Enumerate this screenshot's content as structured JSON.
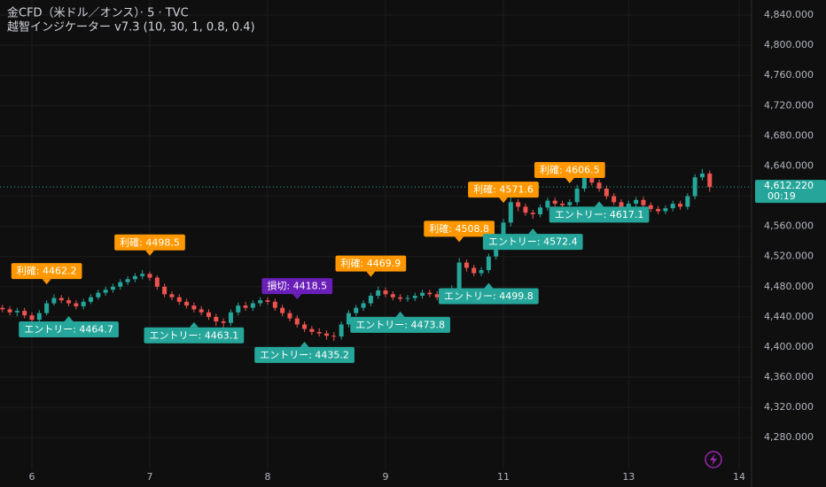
{
  "chart_data": {
    "type": "candlestick",
    "title": "金CFD（米ドル／オンス）· 5 · TVC",
    "subtitle": "越智インジケーター v7.3 (10, 30, 1, 0.8, 0.4)",
    "up_color": "#26a69a",
    "down_color": "#ef5350",
    "grid": true,
    "categories": [
      null,
      null,
      null,
      null,
      "6",
      null,
      null,
      null,
      null,
      null,
      null,
      null,
      null,
      null,
      null,
      null,
      null,
      null,
      null,
      null,
      "7",
      null,
      null,
      null,
      null,
      null,
      null,
      null,
      null,
      null,
      null,
      null,
      null,
      null,
      null,
      null,
      "8",
      null,
      null,
      null,
      null,
      null,
      null,
      null,
      null,
      null,
      null,
      null,
      null,
      null,
      null,
      null,
      "9",
      null,
      null,
      null,
      null,
      null,
      null,
      null,
      null,
      null,
      null,
      null,
      null,
      null,
      null,
      null,
      "11",
      null,
      null,
      null,
      null,
      null,
      null,
      null,
      null,
      null,
      null,
      null,
      null,
      null,
      null,
      null,
      null,
      "13",
      null,
      null,
      null,
      null,
      null,
      null,
      null,
      null,
      null,
      null,
      null,
      null,
      null,
      null,
      "14"
    ],
    "open": [
      4452,
      4450,
      4446,
      4448,
      4442,
      4436,
      4445,
      4458,
      4465,
      4462,
      4458,
      4454,
      4460,
      4466,
      4472,
      4476,
      4480,
      4486,
      4490,
      4494,
      4497,
      4492,
      4480,
      4470,
      4466,
      4460,
      4455,
      4450,
      4446,
      4440,
      4434,
      4432,
      4446,
      4455,
      4452,
      4458,
      4462,
      4460,
      4452,
      4445,
      4438,
      4430,
      4424,
      4420,
      4418,
      4415,
      4414,
      4430,
      4445,
      4452,
      4458,
      4468,
      4475,
      4470,
      4466,
      4464,
      4465,
      4468,
      4472,
      4470,
      4466,
      4462,
      4478,
      4512,
      4505,
      4498,
      4502,
      4520,
      4534,
      4565,
      4592,
      4586,
      4578,
      4576,
      4585,
      4594,
      4590,
      4588,
      4592,
      4610,
      4625,
      4618,
      4610,
      4600,
      4592,
      4586,
      4590,
      4595,
      4588,
      4583,
      4580,
      4584,
      4590,
      4586,
      4600,
      4625,
      4630,
      null,
      null,
      null,
      null
    ],
    "high": [
      4456,
      4454,
      4452,
      4452,
      4446,
      4449,
      4462,
      4470,
      4469,
      4466,
      4462,
      4464,
      4470,
      4476,
      4480,
      4484,
      4490,
      4494,
      4498,
      4502,
      4500,
      4495,
      4484,
      4474,
      4470,
      4464,
      4459,
      4454,
      4450,
      4444,
      4438,
      4450,
      4459,
      4460,
      4462,
      4466,
      4466,
      4464,
      4456,
      4449,
      4442,
      4434,
      4428,
      4425,
      4422,
      4420,
      4434,
      4449,
      4456,
      4462,
      4472,
      4480,
      4479,
      4474,
      4470,
      4469,
      4472,
      4476,
      4476,
      4474,
      4470,
      4482,
      4518,
      4516,
      4509,
      4506,
      4524,
      4538,
      4570,
      4600,
      4596,
      4590,
      4582,
      4589,
      4598,
      4598,
      4594,
      4596,
      4615,
      4632,
      4628,
      4622,
      4614,
      4604,
      4596,
      4594,
      4599,
      4599,
      4592,
      4587,
      4588,
      4594,
      4594,
      4604,
      4629,
      4636,
      4634,
      null,
      null,
      null,
      null
    ],
    "low": [
      4446,
      4442,
      4441,
      4438,
      4430,
      4433,
      4442,
      4455,
      4458,
      4454,
      4450,
      4450,
      4457,
      4463,
      4468,
      4472,
      4476,
      4482,
      4486,
      4490,
      4488,
      4476,
      4466,
      4462,
      4456,
      4451,
      4446,
      4442,
      4436,
      4428,
      4426,
      4428,
      4442,
      4448,
      4448,
      4454,
      4456,
      4448,
      4441,
      4434,
      4426,
      4420,
      4416,
      4414,
      4410,
      4408,
      4410,
      4426,
      4441,
      4448,
      4454,
      4464,
      4466,
      4462,
      4460,
      4460,
      4461,
      4464,
      4466,
      4462,
      4458,
      4458,
      4474,
      4500,
      4494,
      4494,
      4498,
      4516,
      4530,
      4560,
      4580,
      4574,
      4570,
      4572,
      4581,
      4586,
      4584,
      4584,
      4588,
      4606,
      4614,
      4606,
      4596,
      4588,
      4582,
      4582,
      4586,
      4584,
      4579,
      4576,
      4576,
      4580,
      4582,
      4582,
      4596,
      4621,
      4606,
      null,
      null,
      null,
      null
    ],
    "close": [
      4450,
      4446,
      4448,
      4442,
      4436,
      4445,
      4458,
      4465,
      4462,
      4458,
      4454,
      4460,
      4466,
      4472,
      4476,
      4480,
      4486,
      4490,
      4494,
      4497,
      4492,
      4480,
      4470,
      4466,
      4460,
      4455,
      4450,
      4446,
      4440,
      4434,
      4432,
      4446,
      4455,
      4452,
      4458,
      4462,
      4460,
      4452,
      4445,
      4438,
      4430,
      4424,
      4420,
      4418,
      4415,
      4414,
      4430,
      4445,
      4452,
      4458,
      4468,
      4475,
      4470,
      4466,
      4464,
      4465,
      4468,
      4472,
      4470,
      4466,
      4462,
      4478,
      4512,
      4505,
      4498,
      4502,
      4520,
      4534,
      4565,
      4592,
      4586,
      4578,
      4576,
      4585,
      4594,
      4590,
      4588,
      4592,
      4610,
      4625,
      4618,
      4610,
      4600,
      4592,
      4586,
      4590,
      4595,
      4588,
      4583,
      4580,
      4584,
      4590,
      4586,
      4600,
      4625,
      4630,
      4612,
      null,
      null,
      null,
      null
    ],
    "ylim": [
      4238,
      4860
    ],
    "yticks": [
      {
        "value": 4280,
        "label": "4,280.000"
      },
      {
        "value": 4320,
        "label": "4,320.000"
      },
      {
        "value": 4360,
        "label": "4,360.000"
      },
      {
        "value": 4400,
        "label": "4,400.000"
      },
      {
        "value": 4440,
        "label": "4,440.000"
      },
      {
        "value": 4480,
        "label": "4,480.000"
      },
      {
        "value": 4520,
        "label": "4,520.000"
      },
      {
        "value": 4560,
        "label": "4,560.000"
      },
      {
        "value": 4600,
        "label": "4,600.000"
      },
      {
        "value": 4640,
        "label": "4,640.000"
      },
      {
        "value": 4680,
        "label": "4,680.000"
      },
      {
        "value": 4720,
        "label": "4,720.000"
      },
      {
        "value": 4760,
        "label": "4,760.000"
      },
      {
        "value": 4800,
        "label": "4,800.000"
      },
      {
        "value": 4840,
        "label": "4,840.000"
      }
    ],
    "last_price": {
      "value": 4612.22,
      "label": "4,612.220"
    },
    "countdown": "00:19",
    "annotations": [
      {
        "label": "利確: 4462.2",
        "at": 6,
        "position": "above",
        "color": "#ff9800"
      },
      {
        "label": "エントリー: 4464.7",
        "at": 9,
        "position": "below",
        "color": "#26a69a"
      },
      {
        "label": "利確: 4498.5",
        "at": 20,
        "position": "above",
        "color": "#ff9800"
      },
      {
        "label": "エントリー: 4463.1",
        "at": 26,
        "position": "below",
        "color": "#26a69a"
      },
      {
        "label": "損切: 4418.5",
        "at": 40,
        "position": "above",
        "color": "#6a1fb8"
      },
      {
        "label": "エントリー: 4435.2",
        "at": 41,
        "position": "below",
        "color": "#26a69a"
      },
      {
        "label": "利確: 4469.9",
        "at": 50,
        "position": "above",
        "color": "#ff9800"
      },
      {
        "label": "エントリー: 4473.8",
        "at": 54,
        "position": "below",
        "color": "#26a69a"
      },
      {
        "label": "利確: 4508.8",
        "at": 62,
        "position": "above",
        "color": "#ff9800"
      },
      {
        "label": "エントリー: 4499.8",
        "at": 66,
        "position": "below",
        "color": "#26a69a"
      },
      {
        "label": "利確: 4571.6",
        "at": 68,
        "position": "above",
        "color": "#ff9800"
      },
      {
        "label": "エントリー: 4572.4",
        "at": 72,
        "position": "below",
        "color": "#26a69a"
      },
      {
        "label": "利確: 4606.5",
        "at": 77,
        "position": "above",
        "color": "#ff9800"
      },
      {
        "label": "エントリー: 4617.1",
        "at": 81,
        "position": "below",
        "color": "#26a69a"
      }
    ]
  }
}
